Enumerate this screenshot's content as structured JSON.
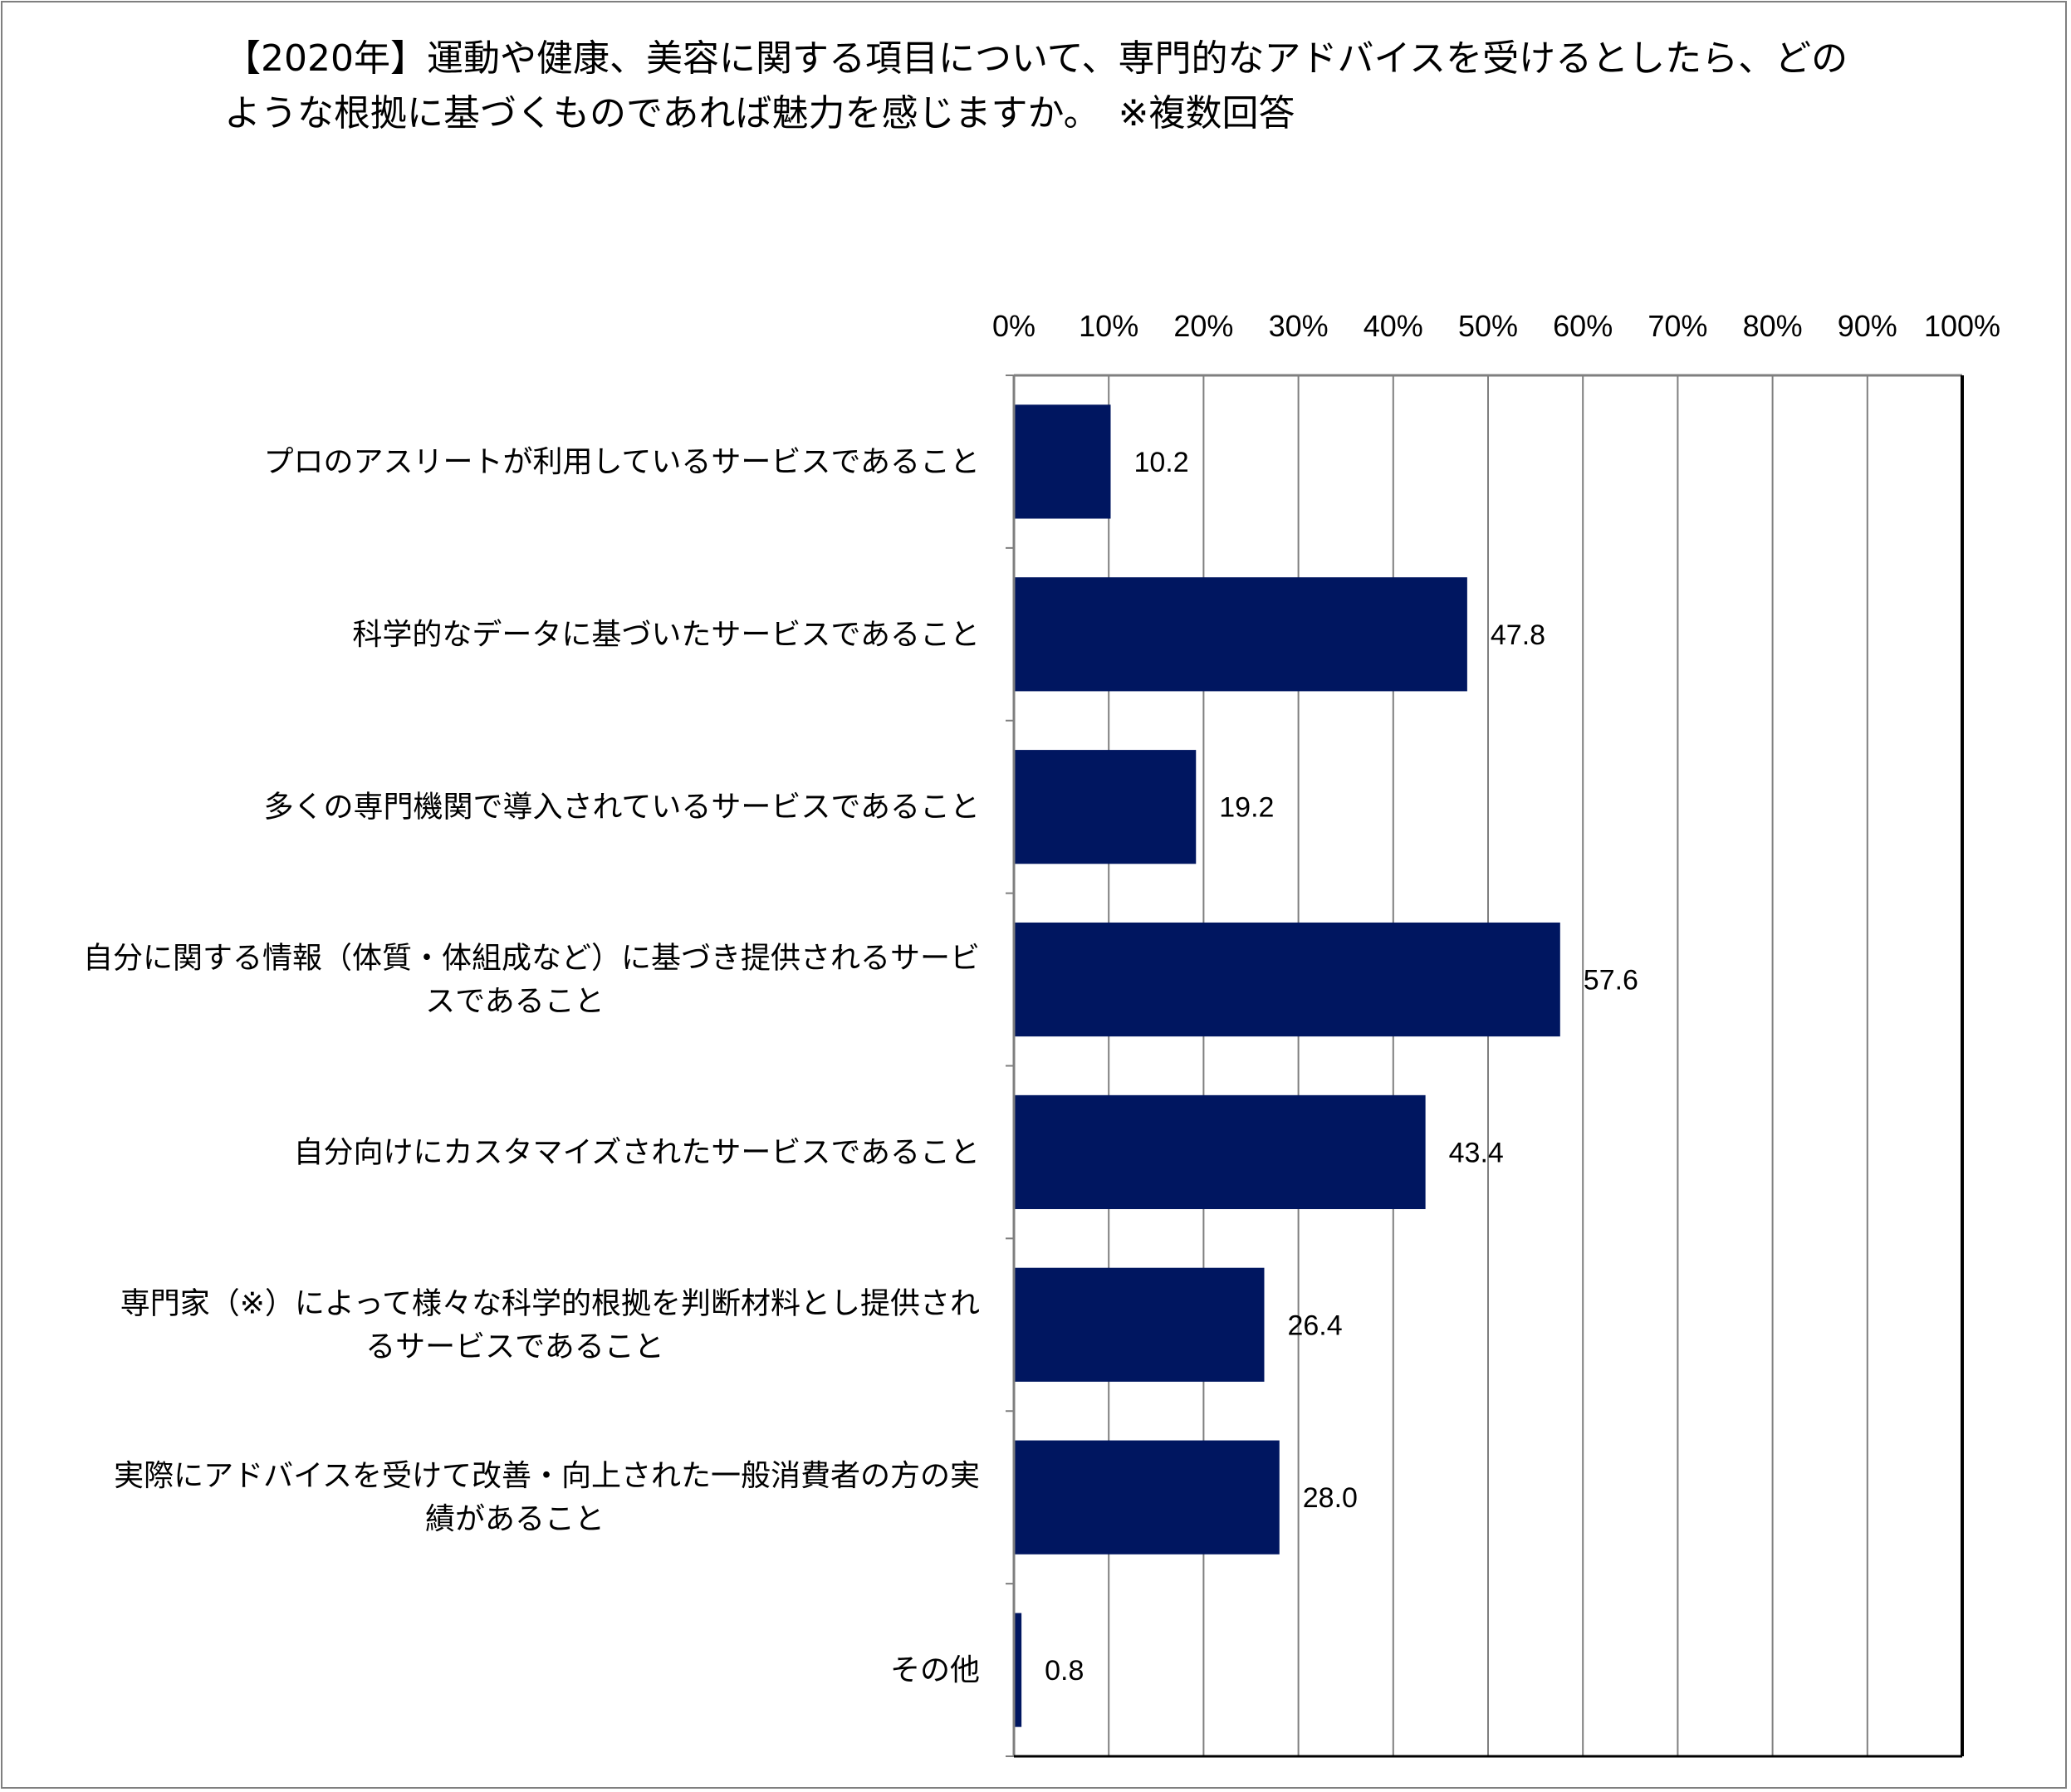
{
  "chart_data": {
    "type": "bar",
    "orientation": "horizontal",
    "title": "【2020年】運動や健康、美容に関する項目について、専門的なアドバイスを受けるとしたら、どのような根拠に基づくものであれば魅力を感じますか。　※複数回答",
    "categories": [
      [
        "プロのアスリートが利用しているサービスであること"
      ],
      [
        "科学的なデータに基づいたサービスであること"
      ],
      [
        "多くの専門機関で導入されているサービスであること"
      ],
      [
        "自分に関する情報（体質・体組成など）に基づき提供されるサービ",
        "スであること"
      ],
      [
        "自分向けにカスタマイズされたサービスであること"
      ],
      [
        "専門家（※）によって様々な科学的根拠を判断材料とし提供され",
        "るサービスであること"
      ],
      [
        "実際にアドバイスを受けて改善・向上された一般消費者の方の実",
        "績があること"
      ],
      [
        "その他"
      ]
    ],
    "values": [
      10.2,
      47.8,
      19.2,
      57.6,
      43.4,
      26.4,
      28.0,
      0.8
    ],
    "value_labels": [
      "10.2",
      "47.8",
      "19.2",
      "57.6",
      "43.4",
      "26.4",
      "28.0",
      "0.8"
    ],
    "xlim": [
      0,
      100
    ],
    "x_ticks": [
      0,
      10,
      20,
      30,
      40,
      50,
      60,
      70,
      80,
      90,
      100
    ],
    "x_tick_labels": [
      "0%",
      "10%",
      "20%",
      "30%",
      "40%",
      "50%",
      "60%",
      "70%",
      "80%",
      "90%",
      "100%"
    ],
    "x_axis_position": "top",
    "grid": true,
    "legend": "none",
    "bar_color": "#001660",
    "grid_color": "#7f7f7f",
    "xlabel": "",
    "ylabel": ""
  }
}
